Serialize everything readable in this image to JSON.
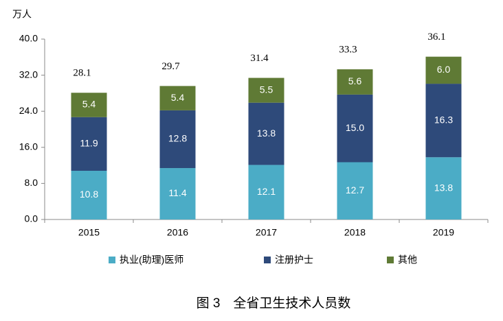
{
  "chart_data": {
    "type": "stacked-bar",
    "title": "图 3　全省卫生技术人员数",
    "y_label": "万人",
    "categories": [
      "2015",
      "2016",
      "2017",
      "2018",
      "2019"
    ],
    "series": [
      {
        "name": "执业(助理)医师",
        "color": "#4bacc6",
        "values": [
          10.8,
          11.4,
          12.1,
          12.7,
          13.8
        ]
      },
      {
        "name": "注册护士",
        "color": "#2e4a7a",
        "values": [
          11.9,
          12.8,
          13.8,
          15.0,
          16.3
        ],
        "value_labels": [
          "11.9",
          "12.8",
          "13.8",
          "15.0",
          "16.3"
        ]
      },
      {
        "name": "其他",
        "color": "#5f7a35",
        "values": [
          5.4,
          5.4,
          5.5,
          5.6,
          6.0
        ],
        "value_labels": [
          "5.4",
          "5.4",
          "5.5",
          "5.6",
          "6.0"
        ]
      }
    ],
    "totals": [
      28.1,
      29.7,
      31.4,
      33.3,
      36.1
    ],
    "ylim": [
      0,
      40
    ],
    "yticks": [
      {
        "value": 0,
        "label": "0.0"
      },
      {
        "value": 8,
        "label": "8.0"
      },
      {
        "value": 16,
        "label": "16.0"
      },
      {
        "value": 24,
        "label": "24.0"
      },
      {
        "value": 32,
        "label": "32.0"
      },
      {
        "value": 40,
        "label": "40.0"
      }
    ],
    "legend": "bottom"
  }
}
